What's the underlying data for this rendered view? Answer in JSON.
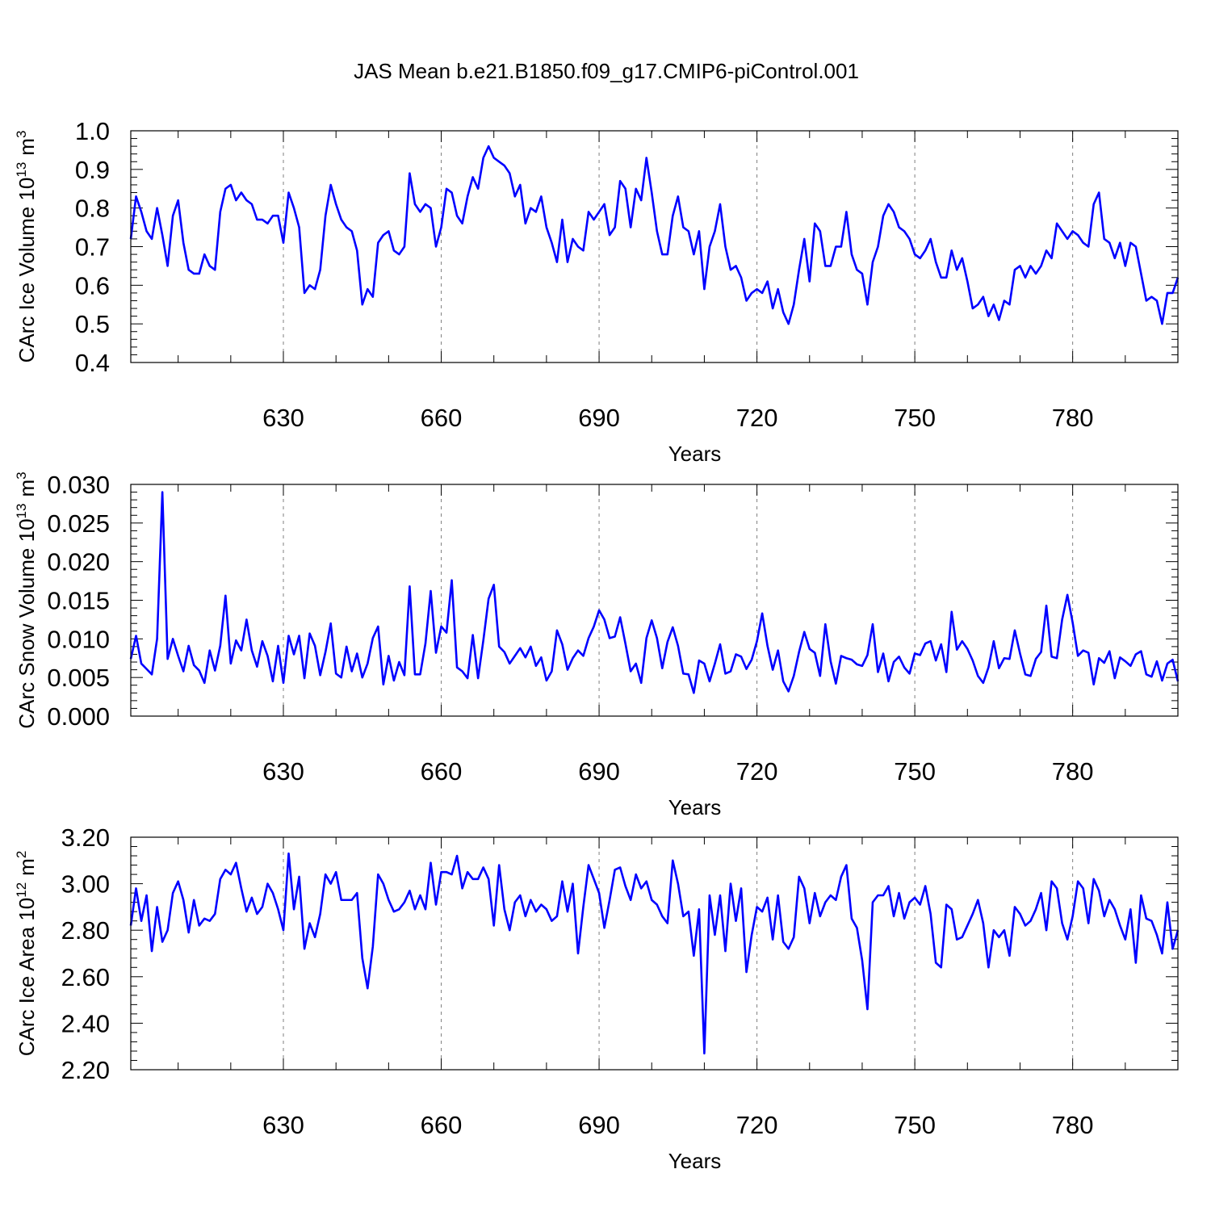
{
  "figure": {
    "title": "JAS Mean b.e21.B1850.f09_g17.CMIP6-piControl.001"
  },
  "chart_data": [
    {
      "type": "line",
      "title": "",
      "xlabel": "Years",
      "ylabel": "CArc Ice Volume 10",
      "ylabel_sup": "13",
      "ylabel_unit": "m",
      "ylabel_unit_sup": "3",
      "xlim": [
        601,
        800
      ],
      "ylim": [
        0.4,
        1.0
      ],
      "yticks": [
        0.4,
        0.5,
        0.6,
        0.7,
        0.8,
        0.9,
        1.0
      ],
      "ytick_labels": [
        "0.4",
        "0.5",
        "0.6",
        "0.7",
        "0.8",
        "0.9",
        "1.0"
      ],
      "xticks": [
        630,
        660,
        690,
        720,
        750,
        780
      ],
      "xtick_labels": [
        "630",
        "660",
        "690",
        "720",
        "750",
        "780"
      ],
      "series": [
        {
          "name": "CArc Ice Volume",
          "color": "#0000ff",
          "x_start": 601,
          "values": [
            0.72,
            0.83,
            0.79,
            0.74,
            0.72,
            0.8,
            0.73,
            0.65,
            0.78,
            0.82,
            0.71,
            0.64,
            0.63,
            0.63,
            0.68,
            0.65,
            0.64,
            0.79,
            0.85,
            0.86,
            0.82,
            0.84,
            0.82,
            0.81,
            0.77,
            0.77,
            0.76,
            0.78,
            0.78,
            0.71,
            0.84,
            0.8,
            0.75,
            0.58,
            0.6,
            0.59,
            0.64,
            0.78,
            0.86,
            0.81,
            0.77,
            0.75,
            0.74,
            0.69,
            0.55,
            0.59,
            0.57,
            0.71,
            0.73,
            0.74,
            0.69,
            0.68,
            0.7,
            0.89,
            0.81,
            0.79,
            0.81,
            0.8,
            0.7,
            0.75,
            0.85,
            0.84,
            0.78,
            0.76,
            0.83,
            0.88,
            0.85,
            0.93,
            0.96,
            0.93,
            0.92,
            0.91,
            0.89,
            0.83,
            0.86,
            0.76,
            0.8,
            0.79,
            0.83,
            0.75,
            0.71,
            0.66,
            0.77,
            0.66,
            0.72,
            0.7,
            0.69,
            0.79,
            0.77,
            0.79,
            0.81,
            0.73,
            0.75,
            0.87,
            0.85,
            0.75,
            0.85,
            0.82,
            0.93,
            0.84,
            0.74,
            0.68,
            0.68,
            0.78,
            0.83,
            0.75,
            0.74,
            0.68,
            0.74,
            0.59,
            0.7,
            0.74,
            0.81,
            0.7,
            0.64,
            0.65,
            0.62,
            0.56,
            0.58,
            0.59,
            0.58,
            0.61,
            0.54,
            0.59,
            0.53,
            0.5,
            0.55,
            0.64,
            0.72,
            0.61,
            0.76,
            0.74,
            0.65,
            0.65,
            0.7,
            0.7,
            0.79,
            0.68,
            0.64,
            0.63,
            0.55,
            0.66,
            0.7,
            0.78,
            0.81,
            0.79,
            0.75,
            0.74,
            0.72,
            0.68,
            0.67,
            0.69,
            0.72,
            0.66,
            0.62,
            0.62,
            0.69,
            0.64,
            0.67,
            0.61,
            0.54,
            0.55,
            0.57,
            0.52,
            0.55,
            0.51,
            0.56,
            0.55,
            0.64,
            0.65,
            0.62,
            0.65,
            0.63,
            0.65,
            0.69,
            0.67,
            0.76,
            0.74,
            0.72,
            0.74,
            0.73,
            0.71,
            0.7,
            0.81,
            0.84,
            0.72,
            0.71,
            0.67,
            0.71,
            0.65,
            0.71,
            0.7,
            0.63,
            0.56,
            0.57,
            0.56,
            0.5,
            0.58,
            0.58,
            0.62
          ]
        }
      ]
    },
    {
      "type": "line",
      "title": "",
      "xlabel": "Years",
      "ylabel": "CArc Snow Volume 10",
      "ylabel_sup": "13",
      "ylabel_unit": "m",
      "ylabel_unit_sup": "3",
      "xlim": [
        601,
        800
      ],
      "ylim": [
        0.0,
        0.03
      ],
      "yticks": [
        0.0,
        0.005,
        0.01,
        0.015,
        0.02,
        0.025,
        0.03
      ],
      "ytick_labels": [
        "0.000",
        "0.005",
        "0.010",
        "0.015",
        "0.020",
        "0.025",
        "0.030"
      ],
      "xticks": [
        630,
        660,
        690,
        720,
        750,
        780
      ],
      "xtick_labels": [
        "630",
        "660",
        "690",
        "720",
        "750",
        "780"
      ],
      "series": [
        {
          "name": "CArc Snow Volume",
          "color": "#0000ff",
          "x_start": 601,
          "values": [
            0.0074,
            0.0104,
            0.0068,
            0.0061,
            0.0054,
            0.01,
            0.029,
            0.0074,
            0.01,
            0.0078,
            0.0058,
            0.0091,
            0.0066,
            0.0059,
            0.0043,
            0.0085,
            0.0059,
            0.0091,
            0.0156,
            0.0068,
            0.0098,
            0.0085,
            0.0125,
            0.0085,
            0.0064,
            0.0097,
            0.0078,
            0.0045,
            0.0091,
            0.0043,
            0.0104,
            0.008,
            0.0104,
            0.0049,
            0.0107,
            0.0091,
            0.0053,
            0.0083,
            0.012,
            0.0055,
            0.005,
            0.009,
            0.0058,
            0.0081,
            0.005,
            0.0068,
            0.0101,
            0.0116,
            0.0041,
            0.0078,
            0.0046,
            0.007,
            0.0053,
            0.0168,
            0.0054,
            0.0054,
            0.0094,
            0.0162,
            0.0082,
            0.0116,
            0.0108,
            0.0176,
            0.0063,
            0.0058,
            0.0049,
            0.0105,
            0.0049,
            0.0098,
            0.0152,
            0.017,
            0.009,
            0.0083,
            0.0068,
            0.0078,
            0.0088,
            0.0076,
            0.009,
            0.0065,
            0.0076,
            0.0046,
            0.0058,
            0.0111,
            0.0093,
            0.006,
            0.0075,
            0.0085,
            0.0078,
            0.0101,
            0.0116,
            0.0137,
            0.0125,
            0.0101,
            0.0103,
            0.0128,
            0.0094,
            0.0058,
            0.0068,
            0.0043,
            0.0101,
            0.0124,
            0.0101,
            0.0062,
            0.0096,
            0.0115,
            0.0091,
            0.0055,
            0.0054,
            0.003,
            0.0072,
            0.0068,
            0.0045,
            0.0068,
            0.0093,
            0.0055,
            0.0058,
            0.008,
            0.0077,
            0.0061,
            0.0073,
            0.0097,
            0.0133,
            0.0091,
            0.006,
            0.0085,
            0.0045,
            0.0032,
            0.0052,
            0.0083,
            0.0109,
            0.0087,
            0.0082,
            0.0052,
            0.0119,
            0.0071,
            0.0042,
            0.0078,
            0.0075,
            0.0073,
            0.0067,
            0.0065,
            0.0079,
            0.0119,
            0.0057,
            0.0081,
            0.0045,
            0.007,
            0.0077,
            0.0063,
            0.0055,
            0.0081,
            0.0079,
            0.0094,
            0.0097,
            0.0072,
            0.0093,
            0.0057,
            0.0135,
            0.0086,
            0.0097,
            0.0087,
            0.0072,
            0.0052,
            0.0043,
            0.0063,
            0.0097,
            0.0062,
            0.0075,
            0.0074,
            0.0111,
            0.0081,
            0.0054,
            0.0052,
            0.0074,
            0.0083,
            0.0143,
            0.0077,
            0.0075,
            0.0125,
            0.0157,
            0.0121,
            0.0078,
            0.0085,
            0.0082,
            0.0041,
            0.0075,
            0.0069,
            0.0084,
            0.0049,
            0.0076,
            0.0071,
            0.0065,
            0.008,
            0.0084,
            0.0054,
            0.0051,
            0.0071,
            0.0046,
            0.0068,
            0.0073,
            0.0045
          ]
        }
      ]
    },
    {
      "type": "line",
      "title": "",
      "xlabel": "Years",
      "ylabel": "CArc Ice Area 10",
      "ylabel_sup": "12",
      "ylabel_unit": "m",
      "ylabel_unit_sup": "2",
      "xlim": [
        601,
        800
      ],
      "ylim": [
        2.2,
        3.2
      ],
      "yticks": [
        2.2,
        2.4,
        2.6,
        2.8,
        3.0,
        3.2
      ],
      "ytick_labels": [
        "2.20",
        "2.40",
        "2.60",
        "2.80",
        "3.00",
        "3.20"
      ],
      "xticks": [
        630,
        660,
        690,
        720,
        750,
        780
      ],
      "xtick_labels": [
        "630",
        "660",
        "690",
        "720",
        "750",
        "780"
      ],
      "series": [
        {
          "name": "CArc Ice Area",
          "color": "#0000ff",
          "x_start": 601,
          "values": [
            2.82,
            2.98,
            2.84,
            2.95,
            2.71,
            2.9,
            2.75,
            2.8,
            2.96,
            3.01,
            2.93,
            2.79,
            2.93,
            2.82,
            2.85,
            2.84,
            2.87,
            3.02,
            3.06,
            3.04,
            3.09,
            2.98,
            2.88,
            2.94,
            2.87,
            2.9,
            3.0,
            2.96,
            2.89,
            2.8,
            3.13,
            2.89,
            3.03,
            2.72,
            2.83,
            2.77,
            2.87,
            3.04,
            3.0,
            3.05,
            2.93,
            2.93,
            2.93,
            2.96,
            2.68,
            2.55,
            2.73,
            3.04,
            3.0,
            2.93,
            2.88,
            2.89,
            2.92,
            2.97,
            2.89,
            2.95,
            2.89,
            3.09,
            2.91,
            3.05,
            3.05,
            3.04,
            3.12,
            2.98,
            3.05,
            3.02,
            3.02,
            3.07,
            3.02,
            2.82,
            3.08,
            2.89,
            2.8,
            2.92,
            2.95,
            2.86,
            2.93,
            2.88,
            2.91,
            2.89,
            2.84,
            2.86,
            3.01,
            2.88,
            3.0,
            2.7,
            2.9,
            3.08,
            3.02,
            2.96,
            2.81,
            2.93,
            3.06,
            3.07,
            2.99,
            2.93,
            3.04,
            2.98,
            3.01,
            2.93,
            2.91,
            2.86,
            2.83,
            3.1,
            3.0,
            2.86,
            2.88,
            2.69,
            2.89,
            2.27,
            2.95,
            2.78,
            2.95,
            2.71,
            3.0,
            2.84,
            2.98,
            2.62,
            2.78,
            2.9,
            2.88,
            2.94,
            2.76,
            2.95,
            2.75,
            2.72,
            2.77,
            3.03,
            2.98,
            2.83,
            2.96,
            2.86,
            2.92,
            2.95,
            2.93,
            3.03,
            3.08,
            2.85,
            2.81,
            2.67,
            2.46,
            2.92,
            2.95,
            2.95,
            2.99,
            2.86,
            2.96,
            2.85,
            2.92,
            2.94,
            2.91,
            2.99,
            2.87,
            2.66,
            2.64,
            2.91,
            2.89,
            2.76,
            2.77,
            2.82,
            2.87,
            2.93,
            2.83,
            2.64,
            2.8,
            2.77,
            2.8,
            2.69,
            2.9,
            2.87,
            2.82,
            2.84,
            2.89,
            2.96,
            2.8,
            3.01,
            2.98,
            2.83,
            2.76,
            2.86,
            3.01,
            2.98,
            2.83,
            3.02,
            2.97,
            2.86,
            2.93,
            2.89,
            2.82,
            2.76,
            2.89,
            2.66,
            2.95,
            2.85,
            2.84,
            2.78,
            2.7,
            2.92,
            2.72,
            2.8
          ]
        }
      ]
    }
  ]
}
